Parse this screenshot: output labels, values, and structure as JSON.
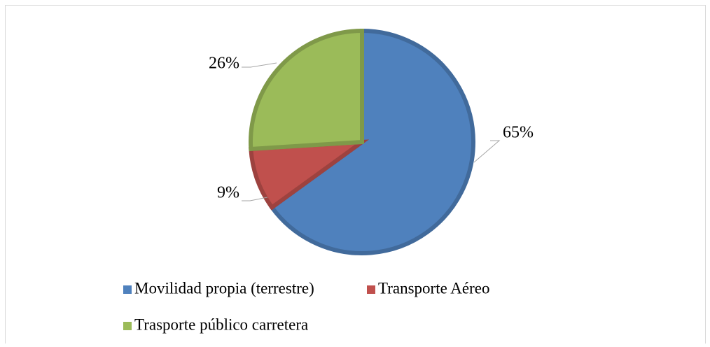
{
  "chart_data": {
    "type": "pie",
    "categories": [
      "Movilidad propia (terrestre)",
      "Transporte Aéreo",
      "Trasporte público carretera"
    ],
    "values": [
      65,
      9,
      26
    ],
    "value_labels": [
      "65%",
      "9%",
      "26%"
    ],
    "colors": [
      "#4f81bd",
      "#c0504d",
      "#9bbb59"
    ],
    "legend": "bottom"
  }
}
